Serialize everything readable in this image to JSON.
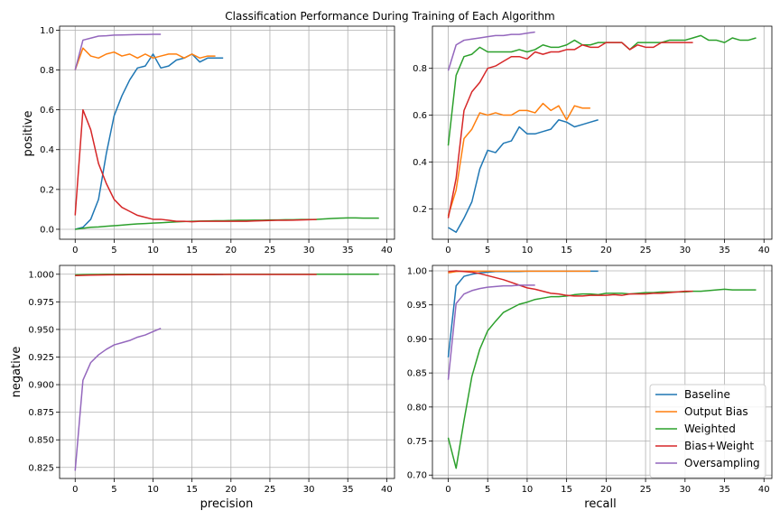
{
  "chart_data": {
    "type": "line",
    "title": "Classification Performance During Training of Each Algorithm",
    "row_labels": [
      "positive",
      "negative"
    ],
    "col_labels": [
      "precision",
      "recall"
    ],
    "legend": {
      "placement": "lower-right of bottom-right panel",
      "entries": [
        "Baseline",
        "Output Bias",
        "Weighted",
        "Bias+Weight",
        "Oversampling"
      ]
    },
    "colors": {
      "Baseline": "#1f77b4",
      "Output Bias": "#ff7f0e",
      "Weighted": "#2ca02c",
      "Bias+Weight": "#d62728",
      "Oversampling": "#9467bd"
    },
    "grid": true,
    "panels": [
      {
        "id": "positive-precision",
        "xlim": [
          -2,
          41
        ],
        "ylim": [
          -0.05,
          1.02
        ],
        "xticks": [
          "0",
          "5",
          "10",
          "15",
          "20",
          "25",
          "30",
          "35",
          "40"
        ],
        "yticks": [
          "0.0",
          "0.2",
          "0.4",
          "0.6",
          "0.8",
          "1.0"
        ],
        "series": [
          {
            "name": "Baseline",
            "values": [
              0.0,
              0.01,
              0.05,
              0.15,
              0.38,
              0.57,
              0.67,
              0.75,
              0.81,
              0.82,
              0.88,
              0.81,
              0.82,
              0.85,
              0.86,
              0.88,
              0.84,
              0.86,
              0.86,
              0.86
            ]
          },
          {
            "name": "Output Bias",
            "values": [
              0.8,
              0.91,
              0.87,
              0.86,
              0.88,
              0.89,
              0.87,
              0.88,
              0.86,
              0.88,
              0.86,
              0.87,
              0.88,
              0.88,
              0.86,
              0.88,
              0.86,
              0.87,
              0.87
            ]
          },
          {
            "name": "Weighted",
            "values": [
              0.0,
              0.005,
              0.01,
              0.012,
              0.015,
              0.018,
              0.021,
              0.024,
              0.027,
              0.029,
              0.031,
              0.033,
              0.035,
              0.037,
              0.039,
              0.04,
              0.041,
              0.042,
              0.043,
              0.043,
              0.044,
              0.045,
              0.045,
              0.046,
              0.046,
              0.047,
              0.047,
              0.048,
              0.048,
              0.049,
              0.049,
              0.05,
              0.052,
              0.054,
              0.056,
              0.057,
              0.057,
              0.056,
              0.056,
              0.056
            ]
          },
          {
            "name": "Bias+Weight",
            "values": [
              0.07,
              0.6,
              0.5,
              0.33,
              0.23,
              0.15,
              0.11,
              0.09,
              0.07,
              0.06,
              0.05,
              0.05,
              0.045,
              0.04,
              0.04,
              0.038,
              0.04,
              0.04,
              0.04,
              0.04,
              0.04,
              0.04,
              0.04,
              0.042,
              0.043,
              0.044,
              0.045,
              0.045,
              0.046,
              0.047,
              0.048,
              0.049
            ]
          },
          {
            "name": "Oversampling",
            "values": [
              0.8,
              0.95,
              0.96,
              0.97,
              0.972,
              0.975,
              0.976,
              0.977,
              0.978,
              0.978,
              0.979,
              0.979
            ]
          }
        ]
      },
      {
        "id": "positive-recall",
        "xlim": [
          -2,
          41
        ],
        "ylim": [
          0.07,
          0.98
        ],
        "xticks": [
          "0",
          "5",
          "10",
          "15",
          "20",
          "25",
          "30",
          "35",
          "40"
        ],
        "yticks": [
          "0.2",
          "0.4",
          "0.6",
          "0.8"
        ],
        "series": [
          {
            "name": "Baseline",
            "values": [
              0.12,
              0.1,
              0.16,
              0.23,
              0.37,
              0.45,
              0.44,
              0.48,
              0.49,
              0.55,
              0.52,
              0.52,
              0.53,
              0.54,
              0.58,
              0.57,
              0.55,
              0.56,
              0.57,
              0.58
            ]
          },
          {
            "name": "Output Bias",
            "values": [
              0.17,
              0.28,
              0.5,
              0.54,
              0.61,
              0.6,
              0.61,
              0.6,
              0.6,
              0.62,
              0.62,
              0.61,
              0.65,
              0.62,
              0.64,
              0.58,
              0.64,
              0.63,
              0.63
            ]
          },
          {
            "name": "Weighted",
            "values": [
              0.47,
              0.77,
              0.85,
              0.86,
              0.89,
              0.87,
              0.87,
              0.87,
              0.87,
              0.88,
              0.87,
              0.88,
              0.9,
              0.89,
              0.89,
              0.9,
              0.92,
              0.9,
              0.9,
              0.91,
              0.91,
              0.91,
              0.91,
              0.88,
              0.91,
              0.91,
              0.91,
              0.91,
              0.92,
              0.92,
              0.92,
              0.93,
              0.94,
              0.92,
              0.92,
              0.91,
              0.93,
              0.92,
              0.92,
              0.93
            ]
          },
          {
            "name": "Bias+Weight",
            "values": [
              0.16,
              0.33,
              0.62,
              0.7,
              0.74,
              0.8,
              0.81,
              0.83,
              0.85,
              0.85,
              0.84,
              0.87,
              0.86,
              0.87,
              0.87,
              0.88,
              0.88,
              0.9,
              0.89,
              0.89,
              0.91,
              0.91,
              0.91,
              0.88,
              0.9,
              0.89,
              0.89,
              0.91,
              0.91,
              0.91,
              0.91,
              0.91
            ]
          },
          {
            "name": "Oversampling",
            "values": [
              0.79,
              0.9,
              0.92,
              0.925,
              0.93,
              0.935,
              0.94,
              0.94,
              0.945,
              0.945,
              0.95,
              0.955
            ]
          }
        ]
      },
      {
        "id": "negative-precision",
        "xlim": [
          -2,
          41
        ],
        "ylim": [
          0.815,
          1.008
        ],
        "xticks": [
          "0",
          "5",
          "10",
          "15",
          "20",
          "25",
          "30",
          "35",
          "40"
        ],
        "yticks": [
          "0.825",
          "0.850",
          "0.875",
          "0.900",
          "0.925",
          "0.950",
          "0.975",
          "1.000"
        ],
        "series": [
          {
            "name": "Baseline",
            "values": [
              0.999,
              0.9993,
              0.9995,
              0.9996,
              0.9997,
              0.9997,
              0.9998,
              0.9998,
              0.9998,
              0.9998,
              0.9998,
              0.9998,
              0.9998,
              0.9998,
              0.9998,
              0.9998,
              0.9998,
              0.9998,
              0.9998,
              0.9999
            ]
          },
          {
            "name": "Output Bias",
            "values": [
              0.999,
              0.9995,
              0.9996,
              0.9997,
              0.9998,
              0.9998,
              0.9998,
              0.9998,
              0.9998,
              0.9998,
              0.9998,
              0.9998,
              0.9998,
              0.9998,
              0.9998,
              0.9998,
              0.9998,
              0.9998,
              0.9998
            ]
          },
          {
            "name": "Weighted",
            "values": [
              0.9995,
              0.9997,
              0.9998,
              0.9998,
              0.9999,
              0.9999,
              0.9999,
              0.9999,
              0.9999,
              0.9999,
              0.9999,
              0.9999,
              0.9999,
              0.9999,
              0.9999,
              0.9999,
              0.9999,
              0.9999,
              0.9999,
              0.9999,
              1.0,
              1.0,
              1.0,
              1.0,
              1.0,
              1.0,
              1.0,
              1.0,
              1.0,
              1.0,
              1.0,
              1.0,
              1.0,
              1.0,
              1.0,
              1.0,
              1.0,
              1.0,
              1.0,
              1.0
            ]
          },
          {
            "name": "Bias+Weight",
            "values": [
              0.9988,
              0.999,
              0.9992,
              0.9993,
              0.9994,
              0.9995,
              0.9995,
              0.9996,
              0.9996,
              0.9996,
              0.9997,
              0.9997,
              0.9997,
              0.9997,
              0.9997,
              0.9998,
              0.9998,
              0.9998,
              0.9998,
              0.9998,
              0.9998,
              0.9998,
              0.9998,
              0.9998,
              0.9998,
              0.9998,
              0.9998,
              0.9998,
              0.9998,
              0.9998,
              0.9998,
              0.9998
            ]
          },
          {
            "name": "Oversampling",
            "values": [
              0.822,
              0.904,
              0.92,
              0.927,
              0.932,
              0.936,
              0.938,
              0.94,
              0.943,
              0.945,
              0.948,
              0.951
            ]
          }
        ]
      },
      {
        "id": "negative-recall",
        "xlim": [
          -2,
          41
        ],
        "ylim": [
          0.695,
          1.008
        ],
        "xticks": [
          "0",
          "5",
          "10",
          "15",
          "20",
          "25",
          "30",
          "35",
          "40"
        ],
        "yticks": [
          "0.70",
          "0.75",
          "0.80",
          "0.85",
          "0.90",
          "0.95",
          "1.00"
        ],
        "series": [
          {
            "name": "Baseline",
            "values": [
              0.873,
              0.978,
              0.992,
              0.995,
              0.997,
              0.998,
              0.999,
              0.999,
              0.999,
              0.999,
              0.9995,
              0.9995,
              0.9995,
              0.9995,
              0.9995,
              0.9995,
              0.9995,
              0.9995,
              0.9995,
              0.9995
            ]
          },
          {
            "name": "Output Bias",
            "values": [
              0.997,
              0.999,
              0.9995,
              0.9995,
              0.9995,
              0.9995,
              0.9995,
              0.9995,
              0.9995,
              0.9995,
              0.9995,
              0.9995,
              0.9995,
              0.9995,
              0.9995,
              0.9995,
              0.9995,
              0.9995,
              0.9995
            ]
          },
          {
            "name": "Weighted",
            "values": [
              0.755,
              0.71,
              0.78,
              0.845,
              0.885,
              0.912,
              0.926,
              0.939,
              0.945,
              0.951,
              0.954,
              0.958,
              0.96,
              0.962,
              0.962,
              0.963,
              0.965,
              0.966,
              0.966,
              0.965,
              0.967,
              0.967,
              0.967,
              0.966,
              0.967,
              0.968,
              0.968,
              0.969,
              0.969,
              0.969,
              0.969,
              0.97,
              0.97,
              0.971,
              0.972,
              0.973,
              0.972,
              0.972,
              0.972,
              0.972
            ]
          },
          {
            "name": "Bias+Weight",
            "values": [
              0.999,
              1.0,
              0.999,
              0.998,
              0.996,
              0.993,
              0.99,
              0.987,
              0.983,
              0.979,
              0.975,
              0.973,
              0.97,
              0.967,
              0.966,
              0.964,
              0.963,
              0.963,
              0.964,
              0.964,
              0.964,
              0.965,
              0.964,
              0.966,
              0.966,
              0.966,
              0.967,
              0.967,
              0.968,
              0.969,
              0.97,
              0.97
            ]
          },
          {
            "name": "Oversampling",
            "values": [
              0.84,
              0.952,
              0.966,
              0.971,
              0.974,
              0.976,
              0.977,
              0.978,
              0.978,
              0.979,
              0.979,
              0.979
            ]
          }
        ]
      }
    ]
  }
}
